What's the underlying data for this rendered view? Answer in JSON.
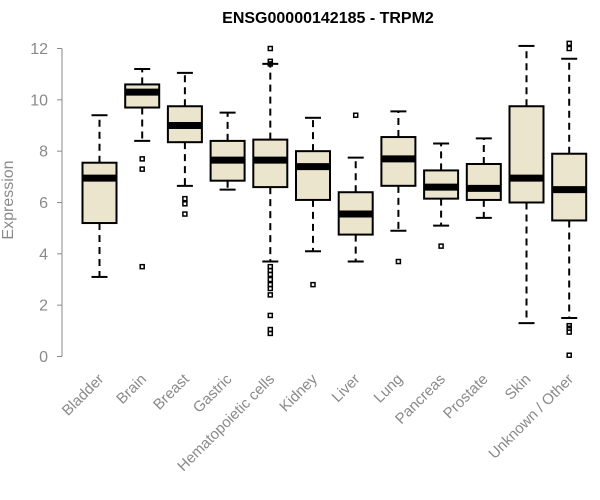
{
  "chart_data": {
    "type": "boxplot",
    "title": "ENSG00000142185 - TRPM2",
    "ylabel": "Expression",
    "xlabel": "",
    "ylim": [
      0,
      12
    ],
    "yticks": [
      0,
      2,
      4,
      6,
      8,
      10,
      12
    ],
    "box_fill": "#ece5cd",
    "categories": [
      "Bladder",
      "Brain",
      "Breast",
      "Gastric",
      "Hematopoietic cells",
      "Kidney",
      "Liver",
      "Lung",
      "Pancreas",
      "Prostate",
      "Skin",
      "Unknown / Other"
    ],
    "boxes": [
      {
        "category": "Bladder",
        "whisker_low": 3.1,
        "q1": 5.2,
        "median": 6.95,
        "q3": 7.55,
        "whisker_high": 9.4,
        "outliers": []
      },
      {
        "category": "Brain",
        "whisker_low": 8.4,
        "q1": 9.7,
        "median": 10.3,
        "q3": 10.6,
        "whisker_high": 11.2,
        "outliers": [
          7.7,
          7.3,
          3.5
        ]
      },
      {
        "category": "Breast",
        "whisker_low": 6.65,
        "q1": 8.35,
        "median": 9.0,
        "q3": 9.75,
        "whisker_high": 11.05,
        "outliers": [
          6.15,
          5.95,
          5.55
        ]
      },
      {
        "category": "Gastric",
        "whisker_low": 6.5,
        "q1": 6.85,
        "median": 7.65,
        "q3": 8.4,
        "whisker_high": 9.5,
        "outliers": []
      },
      {
        "category": "Hematopoietic cells",
        "whisker_low": 3.7,
        "q1": 6.6,
        "median": 7.65,
        "q3": 8.45,
        "whisker_high": 11.4,
        "outliers": [
          12.0,
          11.5,
          11.4,
          3.5,
          3.35,
          3.2,
          3.0,
          2.8,
          2.65,
          2.4,
          1.6,
          1.05,
          0.9
        ]
      },
      {
        "category": "Kidney",
        "whisker_low": 4.1,
        "q1": 6.1,
        "median": 7.4,
        "q3": 8.0,
        "whisker_high": 9.3,
        "outliers": [
          2.8
        ]
      },
      {
        "category": "Liver",
        "whisker_low": 3.7,
        "q1": 4.75,
        "median": 5.55,
        "q3": 6.4,
        "whisker_high": 7.75,
        "outliers": [
          9.4
        ]
      },
      {
        "category": "Lung",
        "whisker_low": 4.9,
        "q1": 6.65,
        "median": 7.7,
        "q3": 8.55,
        "whisker_high": 9.55,
        "outliers": [
          3.7
        ]
      },
      {
        "category": "Pancreas",
        "whisker_low": 5.1,
        "q1": 6.15,
        "median": 6.6,
        "q3": 7.25,
        "whisker_high": 8.3,
        "outliers": [
          4.3
        ]
      },
      {
        "category": "Prostate",
        "whisker_low": 5.4,
        "q1": 6.1,
        "median": 6.55,
        "q3": 7.5,
        "whisker_high": 8.5,
        "outliers": []
      },
      {
        "category": "Skin",
        "whisker_low": 1.3,
        "q1": 6.0,
        "median": 6.95,
        "q3": 9.75,
        "whisker_high": 12.1,
        "outliers": []
      },
      {
        "category": "Unknown / Other",
        "whisker_low": 1.5,
        "q1": 5.3,
        "median": 6.5,
        "q3": 7.9,
        "whisker_high": 11.6,
        "outliers": [
          12.2,
          12.0,
          1.2,
          1.1,
          0.95,
          0.05
        ]
      }
    ]
  }
}
